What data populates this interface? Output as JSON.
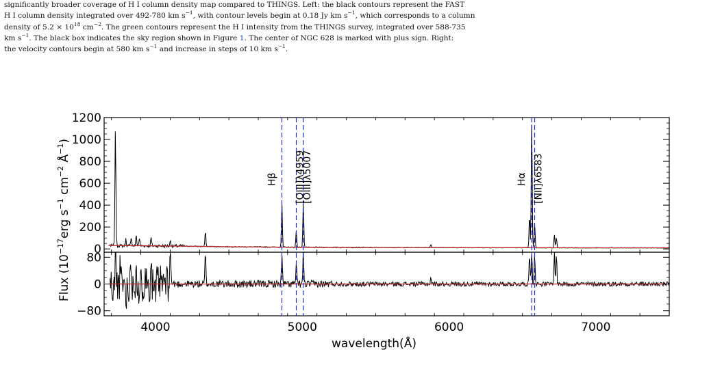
{
  "caption": {
    "l1": "significantly broader coverage of H I column density map compared to THINGS. Left: the black contours represent the FAST",
    "l2a": "H I column density integrated over 492-780 km s",
    "l2b": ", with contour levels begin at 0.18 Jy km s",
    "l2c": ", which corresponds to a column",
    "l3a": "density of 5.2 × 10",
    "l3b": " cm",
    "l3c": ". The green contours represent the H I intensity from the THINGS survey, integrated over 588-735",
    "l4a": "km s",
    "l4b": ". The black box indicates the sky region shown in Figure ",
    "l4c": "1",
    "l4d": ". The center of NGC 628 is marked with plus sign. Right:",
    "l5a": "the velocity contours begin at 580 km s",
    "l5b": " and increase in steps of 10 km s",
    "l5c": ".",
    "sup_m1": "−1",
    "sup_18": "18",
    "sup_m2": "−2"
  },
  "colors": {
    "spectrum": "#000000",
    "model": "#c0282a",
    "line_markers": "#1a2ccf",
    "axes": "#000000"
  },
  "chart_data": {
    "type": "line",
    "xlabel": "wavelength(Å)",
    "xlim": [
      3650,
      7500
    ],
    "x_ticks": [
      4000,
      5000,
      6000,
      7000
    ],
    "panels": [
      {
        "name": "spectrum",
        "ylabel_parts": [
          "Flux (10",
          "−17",
          "erg s",
          "−1",
          " cm",
          "−2",
          " Å",
          "−1",
          ")"
        ],
        "ylim": [
          -30,
          1200
        ],
        "y_ticks": [
          0,
          200,
          400,
          600,
          800,
          1000,
          1200
        ],
        "series": [
          {
            "role": "observed",
            "baseline": [
              [
                3680,
                30
              ],
              [
                4000,
                28
              ],
              [
                4500,
                20
              ],
              [
                5000,
                15
              ],
              [
                5500,
                13
              ],
              [
                6000,
                12
              ],
              [
                6500,
                11
              ],
              [
                7000,
                10
              ],
              [
                7500,
                10
              ]
            ],
            "peaks": [
              [
                3684,
                60
              ],
              [
                3727,
                1080
              ],
              [
                3798,
                60
              ],
              [
                3835,
                85
              ],
              [
                3869,
                95
              ],
              [
                3890,
                70
              ],
              [
                3970,
                75
              ],
              [
                4102,
                55
              ],
              [
                4340,
                140
              ],
              [
                4861,
                400
              ],
              [
                4959,
                150
              ],
              [
                5007,
                420
              ],
              [
                5876,
                30
              ],
              [
                6548,
                300
              ],
              [
                6563,
                1180
              ],
              [
                6583,
                235
              ],
              [
                6717,
                120
              ],
              [
                6731,
                95
              ]
            ]
          },
          {
            "role": "model",
            "points": [
              [
                3680,
                32
              ],
              [
                4000,
                28
              ],
              [
                4500,
                20
              ],
              [
                5000,
                15
              ],
              [
                5500,
                13
              ],
              [
                6000,
                12
              ],
              [
                6500,
                11
              ],
              [
                7000,
                10
              ],
              [
                7500,
                10
              ]
            ]
          }
        ]
      },
      {
        "name": "residual",
        "ylim": [
          -95,
          95
        ],
        "y_ticks": [
          -80,
          0,
          80
        ],
        "series": [
          {
            "role": "residual",
            "peaks": [
              [
                3710,
                -70
              ],
              [
                3727,
                95
              ],
              [
                3760,
                45
              ],
              [
                3800,
                -50
              ],
              [
                3835,
                65
              ],
              [
                3869,
                80
              ],
              [
                3890,
                -85
              ],
              [
                3930,
                60
              ],
              [
                3970,
                95
              ],
              [
                4000,
                -40
              ],
              [
                4102,
                95
              ],
              [
                4340,
                95
              ],
              [
                4861,
                90
              ],
              [
                4959,
                60
              ],
              [
                5007,
                95
              ],
              [
                5876,
                20
              ],
              [
                6548,
                95
              ],
              [
                6563,
                95
              ],
              [
                6583,
                95
              ],
              [
                6717,
                95
              ],
              [
                6731,
                90
              ]
            ]
          },
          {
            "role": "zero",
            "points": [
              [
                3680,
                0
              ],
              [
                7500,
                0
              ]
            ]
          }
        ]
      }
    ],
    "line_markers": [
      {
        "wavelength": 4861,
        "label": "Hβ"
      },
      {
        "wavelength": 4959,
        "label": "[OIII]λ4959"
      },
      {
        "wavelength": 5007,
        "label": "[OIII]λ5007"
      },
      {
        "wavelength": 6563,
        "label": "Hα"
      },
      {
        "wavelength": 6583,
        "label": "[NII]λ6583"
      }
    ]
  }
}
